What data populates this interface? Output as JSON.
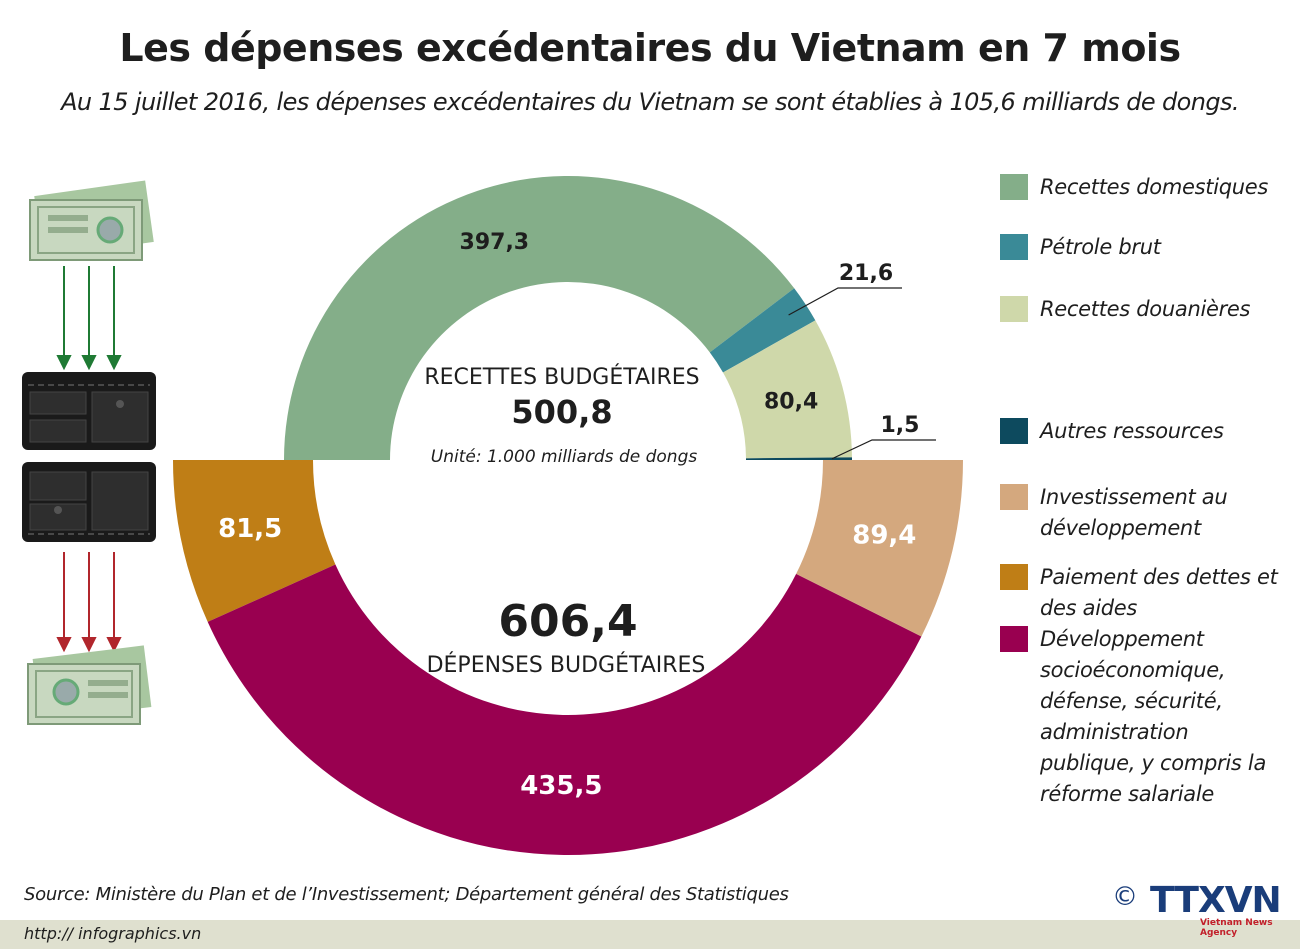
{
  "header": {
    "title": "Les dépenses excédentaires du Vietnam en 7 mois",
    "subtitle": "Au 15 juillet 2016,  les dépenses excédentaires du Vietnam se sont établies à 105,6 milliards de dongs."
  },
  "center": {
    "revenue_title": "RECETTES BUDGÉTAIRES",
    "revenue_total": "500,8",
    "unit": "Unité: 1.000 milliards de dongs",
    "expense_total": "606,4",
    "expense_title": "DÉPENSES BUDGÉTAIRES"
  },
  "legend": [
    {
      "label": "Recettes domestiques",
      "color": "#84ae89"
    },
    {
      "label": "Pétrole brut",
      "color": "#3a8a97"
    },
    {
      "label": "Recettes douanières",
      "color": "#cfd8aa"
    },
    {
      "label": "Autres ressources",
      "color": "#0d4a5e"
    },
    {
      "label": "Investissement au développement",
      "color": "#d4a87e"
    },
    {
      "label": "Paiement des dettes et des aides",
      "color": "#bf7e16"
    },
    {
      "label": "Développement socioéconomique, défense, sécurité, administration publique, y compris la réforme salariale",
      "color": "#990050"
    }
  ],
  "chart_data": [
    {
      "type": "pie",
      "title": "RECETTES BUDGÉTAIRES",
      "total": 500.8,
      "categories": [
        "Recettes domestiques",
        "Pétrole brut",
        "Recettes douanières",
        "Autres ressources"
      ],
      "values": [
        397.3,
        21.6,
        80.4,
        1.5
      ],
      "labels": [
        "397,3",
        "21,6",
        "80,4",
        "1,5"
      ],
      "colors": [
        "#84ae89",
        "#3a8a97",
        "#cfd8aa",
        "#0d4a5e"
      ]
    },
    {
      "type": "pie",
      "title": "DÉPENSES BUDGÉTAIRES",
      "total": 606.4,
      "categories": [
        "Paiement des dettes et des aides",
        "Développement socioéconomique, défense, sécurité, administration publique, y compris la réforme salariale",
        "Investissement au développement"
      ],
      "values": [
        81.5,
        435.5,
        89.4
      ],
      "labels": [
        "81,5",
        "435,5",
        "89,4"
      ],
      "colors": [
        "#bf7e16",
        "#990050",
        "#d4a87e"
      ]
    }
  ],
  "footer": {
    "source": "Source: Ministère du Plan et de l’Investissement; Département général des Statistiques",
    "url": "http:// infographics.vn",
    "copyright": "©",
    "logo": "TTXVN",
    "logo_sub": "Vietnam News Agency"
  }
}
